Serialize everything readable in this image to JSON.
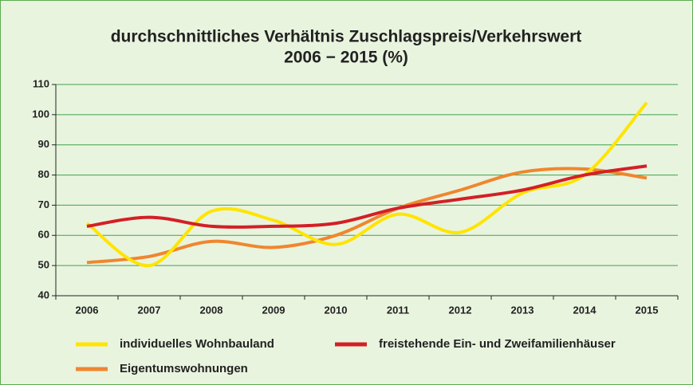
{
  "chart_data": {
    "type": "line",
    "title": [
      "durchschnittliches Verhältnis Zuschlagspreis/Verkehrswert",
      "2006 − 2015 (%)"
    ],
    "categories": [
      "2006",
      "2007",
      "2008",
      "2009",
      "2010",
      "2011",
      "2012",
      "2013",
      "2014",
      "2015"
    ],
    "series": [
      {
        "name": "individuelles Wohnbauland",
        "color": "#ffe400",
        "values": [
          64,
          50,
          68,
          65,
          57,
          67,
          61,
          74,
          80,
          104
        ]
      },
      {
        "name": "freistehende Ein- und Zweifamilienhäuser",
        "color": "#d41f26",
        "values": [
          63,
          66,
          63,
          63,
          64,
          69,
          72,
          75,
          80,
          83
        ]
      },
      {
        "name": "Eigentumswohnungen",
        "color": "#f0862e",
        "values": [
          51,
          53,
          58,
          56,
          60,
          69,
          75,
          81,
          82,
          79
        ]
      }
    ],
    "ylim": [
      40,
      110
    ],
    "yticks": [
      40,
      50,
      60,
      70,
      80,
      90,
      100,
      110
    ],
    "grid": true
  }
}
